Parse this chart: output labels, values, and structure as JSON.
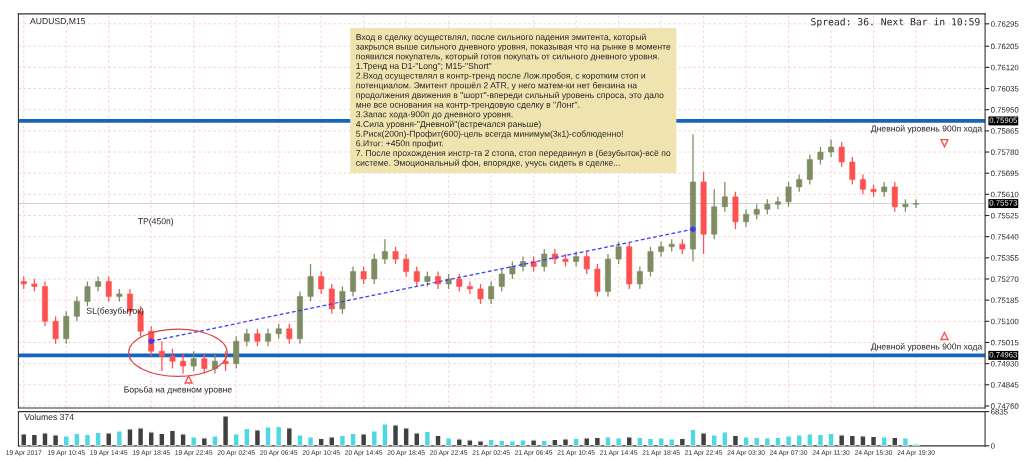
{
  "chart_data": [
    {
      "type": "candlestick",
      "categories": [
        null,
        null,
        null,
        null,
        null,
        null,
        null,
        null,
        null,
        null,
        null,
        null,
        null,
        null,
        null,
        null,
        null,
        null,
        null,
        null,
        null,
        null,
        null,
        null,
        null,
        null,
        null,
        null,
        null,
        null,
        null,
        null,
        null,
        null,
        null,
        null,
        null,
        null,
        null,
        null,
        null,
        null,
        null,
        null,
        null,
        null,
        null,
        null,
        null,
        null,
        null,
        null,
        null,
        null,
        null,
        null,
        null,
        null,
        null,
        null,
        null,
        null,
        null,
        null,
        null,
        null,
        null,
        null,
        null,
        null,
        null,
        null,
        null,
        null,
        null,
        null,
        null,
        null,
        null,
        null,
        null,
        null,
        null,
        null,
        null,
        null,
        null,
        null,
        null,
        null,
        null
      ],
      "ohlc": [
        [
          0.7526,
          0.7528,
          0.7523,
          0.7525
        ],
        [
          0.7525,
          0.7527,
          0.7522,
          0.7524
        ],
        [
          0.7524,
          0.7526,
          0.7508,
          0.751
        ],
        [
          0.751,
          0.7512,
          0.7501,
          0.7503
        ],
        [
          0.7503,
          0.7514,
          0.7501,
          0.7512
        ],
        [
          0.7512,
          0.752,
          0.751,
          0.7518
        ],
        [
          0.7518,
          0.7526,
          0.7516,
          0.7524
        ],
        [
          0.7524,
          0.7528,
          0.7522,
          0.7526
        ],
        [
          0.7526,
          0.7528,
          0.7518,
          0.752
        ],
        [
          0.752,
          0.7523,
          0.7518,
          0.7521
        ],
        [
          0.7521,
          0.7523,
          0.7512,
          0.7514
        ],
        [
          0.7514,
          0.7516,
          0.7504,
          0.7506
        ],
        [
          0.7506,
          0.7508,
          0.7496,
          0.7498
        ],
        [
          0.7498,
          0.7502,
          0.749,
          0.7496
        ],
        [
          0.7496,
          0.7499,
          0.7491,
          0.7494
        ],
        [
          0.7494,
          0.7497,
          0.7489,
          0.7492
        ],
        [
          0.7492,
          0.7498,
          0.749,
          0.7495
        ],
        [
          0.7495,
          0.7497,
          0.7489,
          0.7491
        ],
        [
          0.7491,
          0.7497,
          0.7489,
          0.7494
        ],
        [
          0.7494,
          0.7498,
          0.749,
          0.7493
        ],
        [
          0.7493,
          0.7504,
          0.7491,
          0.7502
        ],
        [
          0.7502,
          0.7507,
          0.75,
          0.7505
        ],
        [
          0.7505,
          0.7507,
          0.75,
          0.7502
        ],
        [
          0.7502,
          0.7507,
          0.75,
          0.7505
        ],
        [
          0.7505,
          0.7509,
          0.7503,
          0.7507
        ],
        [
          0.7507,
          0.7509,
          0.7501,
          0.7503
        ],
        [
          0.7503,
          0.7522,
          0.7501,
          0.752
        ],
        [
          0.752,
          0.7533,
          0.7518,
          0.7528
        ],
        [
          0.7528,
          0.753,
          0.7521,
          0.7523
        ],
        [
          0.7523,
          0.7525,
          0.7513,
          0.7515
        ],
        [
          0.7515,
          0.7524,
          0.7513,
          0.7522
        ],
        [
          0.7522,
          0.7532,
          0.752,
          0.753
        ],
        [
          0.753,
          0.7532,
          0.7525,
          0.7527
        ],
        [
          0.7527,
          0.7537,
          0.7525,
          0.7535
        ],
        [
          0.7535,
          0.7543,
          0.7533,
          0.7538
        ],
        [
          0.7538,
          0.754,
          0.7533,
          0.7535
        ],
        [
          0.7535,
          0.7537,
          0.7528,
          0.753
        ],
        [
          0.753,
          0.7532,
          0.7524,
          0.7526
        ],
        [
          0.7526,
          0.753,
          0.7524,
          0.7528
        ],
        [
          0.7528,
          0.753,
          0.7523,
          0.7525
        ],
        [
          0.7525,
          0.7529,
          0.7523,
          0.7527
        ],
        [
          0.7527,
          0.7529,
          0.7522,
          0.7524
        ],
        [
          0.7524,
          0.7526,
          0.7521,
          0.7523
        ],
        [
          0.7523,
          0.7525,
          0.7517,
          0.7519
        ],
        [
          0.7519,
          0.7526,
          0.7517,
          0.7524
        ],
        [
          0.7524,
          0.7531,
          0.7522,
          0.7529
        ],
        [
          0.7529,
          0.7534,
          0.7527,
          0.7532
        ],
        [
          0.7532,
          0.7536,
          0.753,
          0.7534
        ],
        [
          0.7534,
          0.7536,
          0.753,
          0.7532
        ],
        [
          0.7532,
          0.7539,
          0.753,
          0.7537
        ],
        [
          0.7537,
          0.7539,
          0.7533,
          0.7535
        ],
        [
          0.7535,
          0.7537,
          0.7532,
          0.7534
        ],
        [
          0.7534,
          0.7538,
          0.7532,
          0.7536
        ],
        [
          0.7536,
          0.7538,
          0.7529,
          0.7531
        ],
        [
          0.7531,
          0.7533,
          0.752,
          0.7522
        ],
        [
          0.7522,
          0.7537,
          0.752,
          0.7535
        ],
        [
          0.7535,
          0.7542,
          0.7533,
          0.754
        ],
        [
          0.754,
          0.7542,
          0.7523,
          0.7525
        ],
        [
          0.7525,
          0.7532,
          0.7523,
          0.753
        ],
        [
          0.753,
          0.754,
          0.7528,
          0.7538
        ],
        [
          0.7538,
          0.7542,
          0.7536,
          0.754
        ],
        [
          0.754,
          0.7543,
          0.7538,
          0.7541
        ],
        [
          0.7541,
          0.7543,
          0.7537,
          0.7539
        ],
        [
          0.7539,
          0.7585,
          0.7534,
          0.7566
        ],
        [
          0.7566,
          0.757,
          0.7537,
          0.7545
        ],
        [
          0.7545,
          0.7563,
          0.7543,
          0.7556
        ],
        [
          0.7556,
          0.7566,
          0.7554,
          0.756
        ],
        [
          0.756,
          0.7562,
          0.7547,
          0.755
        ],
        [
          0.755,
          0.7555,
          0.7548,
          0.7553
        ],
        [
          0.7553,
          0.7557,
          0.7551,
          0.7555
        ],
        [
          0.7555,
          0.7559,
          0.7553,
          0.7557
        ],
        [
          0.7557,
          0.756,
          0.7555,
          0.7558
        ],
        [
          0.7558,
          0.7566,
          0.7556,
          0.7564
        ],
        [
          0.7564,
          0.7569,
          0.7562,
          0.7567
        ],
        [
          0.7567,
          0.7577,
          0.7565,
          0.7575
        ],
        [
          0.7575,
          0.758,
          0.7573,
          0.7578
        ],
        [
          0.7578,
          0.7583,
          0.7576,
          0.758
        ],
        [
          0.758,
          0.7582,
          0.7572,
          0.7574
        ],
        [
          0.7574,
          0.7576,
          0.7565,
          0.7567
        ],
        [
          0.7567,
          0.7569,
          0.7561,
          0.7563
        ],
        [
          0.7563,
          0.7565,
          0.756,
          0.7562
        ],
        [
          0.7562,
          0.7566,
          0.756,
          0.7564
        ],
        [
          0.7564,
          0.7566,
          0.7554,
          0.7556
        ],
        [
          0.7556,
          0.7559,
          0.7554,
          0.7557
        ],
        [
          0.7557,
          0.7559,
          0.75555,
          0.75573
        ],
        null,
        null,
        null,
        null,
        null,
        null
      ],
      "colors": [
        "#ff5050",
        "#ff5050",
        "#ff5050",
        "#ff5050",
        "#7d8c62",
        "#7d8c62",
        "#7d8c62",
        "#7d8c62",
        "#ff5050",
        "#7d8c62",
        "#ff5050",
        "#ff5050",
        "#ff5050",
        "#ff5050",
        "#ff5050",
        "#ff5050",
        "#7d8c62",
        "#ff5050",
        "#7d8c62",
        "#ff5050",
        "#7d8c62",
        "#7d8c62",
        "#ff5050",
        "#7d8c62",
        "#7d8c62",
        "#ff5050",
        "#7d8c62",
        "#7d8c62",
        "#ff5050",
        "#ff5050",
        "#7d8c62",
        "#7d8c62",
        "#ff5050",
        "#7d8c62",
        "#7d8c62",
        "#ff5050",
        "#ff5050",
        "#ff5050",
        "#7d8c62",
        "#ff5050",
        "#7d8c62",
        "#ff5050",
        "#ff5050",
        "#ff5050",
        "#7d8c62",
        "#7d8c62",
        "#7d8c62",
        "#7d8c62",
        "#ff5050",
        "#7d8c62",
        "#ff5050",
        "#ff5050",
        "#7d8c62",
        "#ff5050",
        "#ff5050",
        "#7d8c62",
        "#7d8c62",
        "#ff5050",
        "#7d8c62",
        "#7d8c62",
        "#7d8c62",
        "#7d8c62",
        "#ff5050",
        "#7d8c62",
        "#ff5050",
        "#7d8c62",
        "#7d8c62",
        "#ff5050",
        "#7d8c62",
        "#7d8c62",
        "#7d8c62",
        "#7d8c62",
        "#7d8c62",
        "#7d8c62",
        "#7d8c62",
        "#7d8c62",
        "#7d8c62",
        "#ff5050",
        "#ff5050",
        "#ff5050",
        "#ff5050",
        "#7d8c62",
        "#ff5050",
        "#7d8c62",
        "#7d8c62",
        null,
        null,
        null,
        null,
        null,
        null
      ],
      "series": [
        {
          "type": "line",
          "values": [
            null,
            null,
            null,
            null,
            null,
            null,
            null,
            null,
            null,
            null,
            null,
            null,
            0.7502,
            null,
            null,
            null,
            null,
            null,
            null,
            null,
            null,
            null,
            null,
            null,
            null,
            null,
            null,
            null,
            null,
            null,
            null,
            null,
            null,
            null,
            null,
            null,
            null,
            null,
            null,
            null,
            null,
            null,
            null,
            null,
            null,
            null,
            null,
            null,
            null,
            null,
            null,
            null,
            null,
            null,
            null,
            null,
            null,
            null,
            null,
            null,
            null,
            null,
            null,
            0.7547,
            null,
            null,
            null,
            null,
            null,
            null,
            null,
            null,
            null,
            null,
            null,
            null,
            null,
            null,
            null,
            null,
            null,
            null,
            null,
            null,
            null,
            null,
            null,
            null,
            null,
            null,
            null
          ],
          "color": "#3a3aff",
          "line_style": "dashed",
          "marker": "circle"
        }
      ],
      "ylim": [
        0.74752,
        0.76335
      ],
      "yticks": [
        0.76295,
        0.76205,
        {
          "value": 0.7612,
          "label": "0.76120"
        },
        0.76035,
        {
          "value": 0.7595,
          "label": "0.75950"
        },
        0.75865,
        {
          "value": 0.7578,
          "label": "0.75780"
        },
        0.75695,
        {
          "value": 0.7561,
          "label": "0.75610"
        },
        0.75525,
        {
          "value": 0.7544,
          "label": "0.75440"
        },
        0.75355,
        {
          "value": 0.7527,
          "label": "0.75270"
        },
        0.75185,
        {
          "value": 0.751,
          "label": "0.75100"
        },
        0.75015,
        {
          "value": 0.7493,
          "label": "0.74930"
        },
        0.74845,
        {
          "value": 0.7476,
          "label": "0.74760"
        }
      ],
      "tick_labels": "y",
      "grid": true,
      "ref_lines": [
        {
          "axis": "y",
          "value": 0.75905,
          "label": "0.75905",
          "color": "#1565c0"
        },
        {
          "axis": "y",
          "value": 0.74963,
          "label": "0.74963",
          "color": "#1565c0"
        },
        {
          "axis": "y",
          "value": 0.75573,
          "label": "0.75573",
          "color": "#d0d0d0"
        }
      ],
      "annotations": [
        "AUDUSD,M15",
        "Spread: 36. Next Bar in 10:59",
        "Вход в сделку осуществлял, после сильного падения эмитента, который\nзакрылся выше сильного дневного уровня, показывая что на рынке в моменте\nпоявился покупатель, который готов покупать от сильного дневного уровня.\n1.Тренд на D1-\"Long\"; M15-\"Short\"\n2.Вход осуществлял в контр-тренд после Лож.пробоя, с коротким стоп и\nпотенциалом. Эмитент прошёл 2 ATR, у него матем-ки нет бензина на\nпродолжения движения в \"шорт\"-впереди сильный уровень спроса, это дало\nмне все основания на контр-трендовую сделку в \"Лонг\".\n3.Запас хода-900п до дневного уровня.\n4.Сила уровня-\"Дневной\"(встречался раньше)\n5.Риск(200п)-Профит(600)-цель всегда минимум(3к1)-соблюденно!\n6.Итог: +450п профит.\n7. После прохождения инстр-та 2 стопа, стоп передвинул в (безубыток)-всё по\nсистеме. Эмоциональный фон, впорядке, учусь сидеть в сделке...",
        "TP(450п)",
        "SL(безубыток)",
        "Борьба на дневном уровне",
        {
          "text": "Дневной уровень 900п хода",
          "y": 0.75905
        },
        {
          "text": "Дневной уровень 900п хода",
          "y": 0.74963
        }
      ]
    },
    {
      "type": "bar",
      "categories": [
        "19 Apr 2017",
        null,
        null,
        null,
        "19 Apr 10:45",
        null,
        null,
        null,
        "19 Apr 14:45",
        null,
        null,
        null,
        "19 Apr 18:45",
        null,
        null,
        null,
        "19 Apr 22:45",
        null,
        null,
        null,
        "20 Apr 02:45",
        null,
        null,
        null,
        "20 Apr 06:45",
        null,
        null,
        null,
        "20 Apr 10:45",
        null,
        null,
        null,
        "20 Apr 14:45",
        null,
        null,
        null,
        "20 Apr 18:45",
        null,
        null,
        null,
        "20 Apr 22:45",
        null,
        null,
        null,
        "21 Apr 02:45",
        null,
        null,
        null,
        "21 Apr 06:45",
        null,
        null,
        null,
        "21 Apr 10:45",
        null,
        null,
        null,
        "21 Apr 14:45",
        null,
        null,
        null,
        "21 Apr 18:45",
        null,
        null,
        null,
        "21 Apr 22:45",
        null,
        null,
        null,
        "24 Apr 03:30",
        null,
        null,
        null,
        "24 Apr 07:30",
        null,
        null,
        null,
        "24 Apr 11:30",
        null,
        null,
        null,
        "24 Apr 15:30",
        null,
        null,
        null,
        "24 Apr 19:30",
        null,
        null,
        null,
        null,
        null,
        null
      ],
      "values": [
        2400,
        2300,
        2600,
        2200,
        2000,
        2500,
        2300,
        2700,
        2600,
        3000,
        3400,
        3600,
        2800,
        2500,
        3100,
        2400,
        1800,
        1600,
        2000,
        6000,
        2400,
        3500,
        3200,
        3800,
        3900,
        3600,
        2200,
        1800,
        1500,
        1800,
        2100,
        2500,
        2400,
        3000,
        4400,
        4200,
        3600,
        2600,
        2900,
        2100,
        1600,
        1400,
        1200,
        1000,
        1300,
        1100,
        1000,
        1200,
        1200,
        1100,
        1300,
        1400,
        1500,
        1600,
        1700,
        1800,
        1600,
        1800,
        1700,
        1500,
        1600,
        1400,
        1500,
        3300,
        2600,
        2200,
        2800,
        2100,
        1800,
        1700,
        1600,
        1700,
        2000,
        2200,
        2400,
        2300,
        2500,
        2200,
        2100,
        2000,
        1900,
        1800,
        1700,
        1600,
        400,
        null,
        null,
        null,
        null,
        null,
        null
      ],
      "colors": [
        "#404040",
        "#404040",
        "#404040",
        "#404040",
        "#4fd8e4",
        "#4fd8e4",
        "#4fd8e4",
        "#4fd8e4",
        "#404040",
        "#4fd8e4",
        "#404040",
        "#404040",
        "#404040",
        "#404040",
        "#404040",
        "#404040",
        "#4fd8e4",
        "#404040",
        "#4fd8e4",
        "#404040",
        "#4fd8e4",
        "#4fd8e4",
        "#404040",
        "#4fd8e4",
        "#4fd8e4",
        "#404040",
        "#4fd8e4",
        "#4fd8e4",
        "#404040",
        "#404040",
        "#4fd8e4",
        "#4fd8e4",
        "#404040",
        "#4fd8e4",
        "#4fd8e4",
        "#404040",
        "#404040",
        "#404040",
        "#4fd8e4",
        "#404040",
        "#4fd8e4",
        "#404040",
        "#404040",
        "#404040",
        "#4fd8e4",
        "#4fd8e4",
        "#4fd8e4",
        "#4fd8e4",
        "#404040",
        "#4fd8e4",
        "#404040",
        "#404040",
        "#4fd8e4",
        "#404040",
        "#404040",
        "#4fd8e4",
        "#4fd8e4",
        "#404040",
        "#4fd8e4",
        "#4fd8e4",
        "#4fd8e4",
        "#4fd8e4",
        "#404040",
        "#4fd8e4",
        "#404040",
        "#4fd8e4",
        "#4fd8e4",
        "#404040",
        "#4fd8e4",
        "#4fd8e4",
        "#4fd8e4",
        "#4fd8e4",
        "#4fd8e4",
        "#4fd8e4",
        "#4fd8e4",
        "#4fd8e4",
        "#4fd8e4",
        "#404040",
        "#404040",
        "#404040",
        "#404040",
        "#4fd8e4",
        "#404040",
        "#4fd8e4",
        "#4fd8e4",
        null,
        null,
        null,
        null,
        null,
        null
      ],
      "ylim": [
        0,
        6835
      ],
      "yticks": [
        0,
        6835
      ],
      "annotations": [
        "Volumes 374"
      ]
    }
  ]
}
